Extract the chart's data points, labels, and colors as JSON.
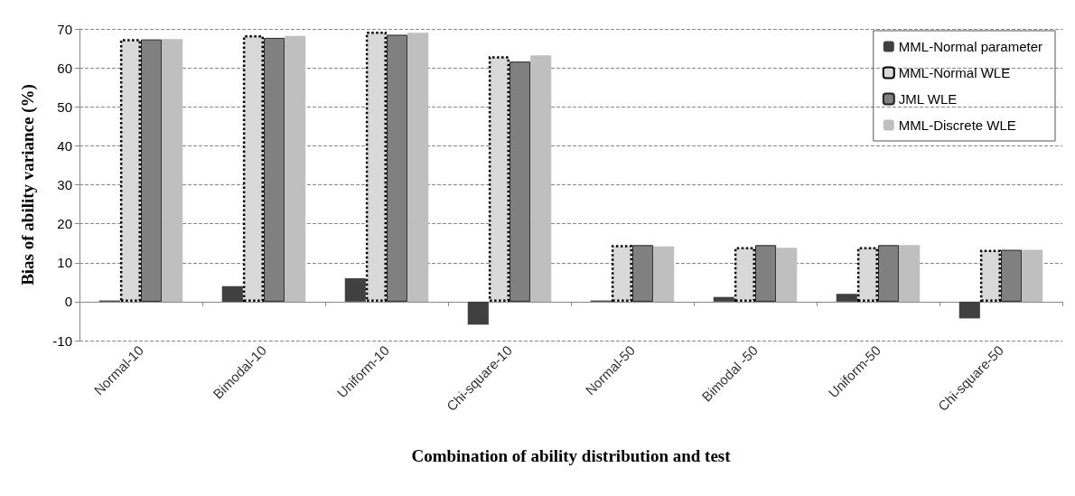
{
  "chart_data": {
    "type": "bar",
    "xlabel": "Combination of ability distribution and test",
    "ylabel": "Bias of ability variance (%)",
    "categories": [
      "Normal-10",
      "Bimodal-10",
      "Uniform-10",
      "Chi-square-10",
      "Normal-50",
      "Bimodal -50",
      "Uniform-50",
      "Chi-square-50"
    ],
    "series": [
      {
        "name": "MML-Normal parameter",
        "color": "#404040",
        "values": [
          0.3,
          4.0,
          6.0,
          -5.9,
          0.3,
          1.2,
          2.0,
          -4.3
        ]
      },
      {
        "name": "MML-Normal WLE",
        "color": "#d9d9d9",
        "line_style": "dotted",
        "values": [
          67.4,
          68.4,
          69.3,
          63.0,
          14.5,
          14.0,
          14.0,
          13.3
        ]
      },
      {
        "name": "JML WLE",
        "color": "#808080",
        "values": [
          67.3,
          67.7,
          68.5,
          61.6,
          14.5,
          14.5,
          14.5,
          13.3
        ]
      },
      {
        "name": "MML-Discrete WLE",
        "color": "#bfbfbf",
        "values": [
          67.4,
          68.2,
          69.0,
          63.2,
          14.2,
          13.8,
          14.5,
          13.3
        ]
      }
    ],
    "ylim": [
      -10,
      70
    ],
    "yticks": [
      -10,
      0,
      10,
      20,
      30,
      40,
      50,
      60,
      70
    ],
    "grid": "y",
    "legend": "top right"
  }
}
